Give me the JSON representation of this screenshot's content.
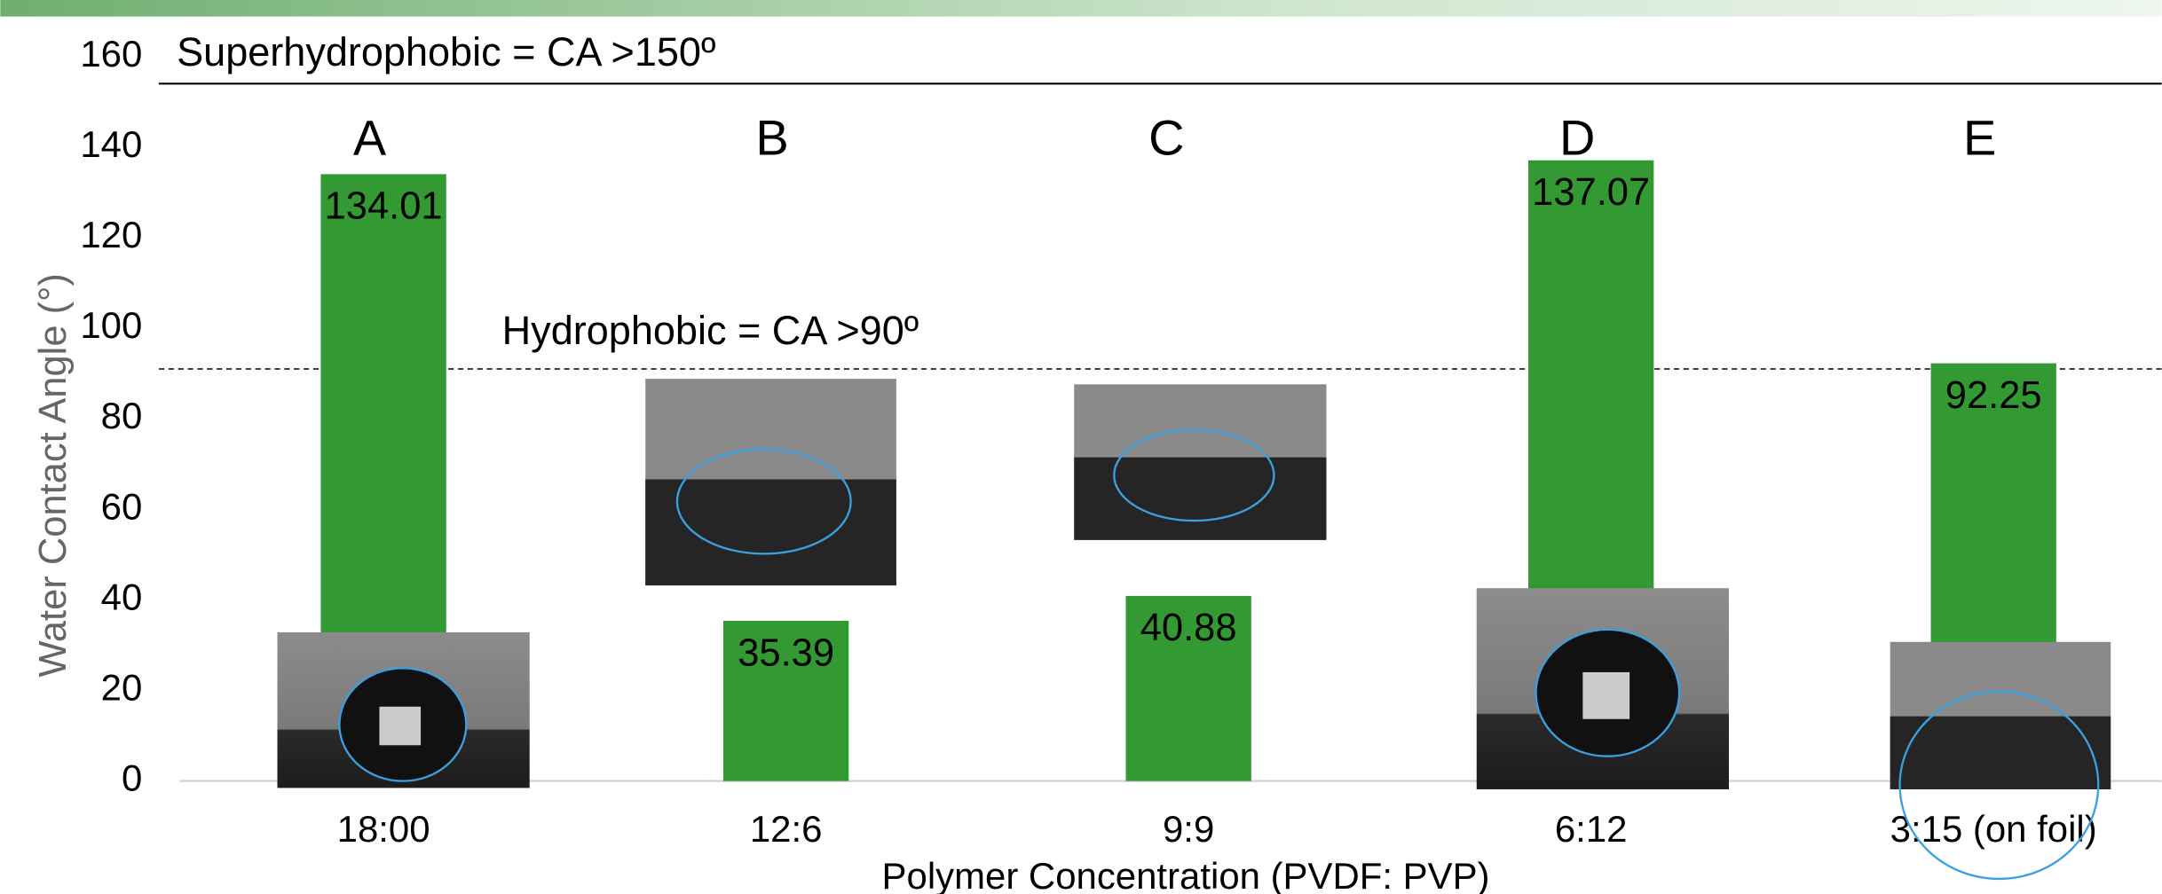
{
  "chart_data": {
    "type": "bar",
    "categories": [
      "18:00",
      "12:6",
      "9:9",
      "6:12",
      "3:15 (on foil)"
    ],
    "values": [
      134.01,
      35.39,
      40.88,
      137.07,
      92.25
    ],
    "bar_letters": [
      "A",
      "B",
      "C",
      "D",
      "E"
    ],
    "color": "#339933",
    "ylim": [
      0,
      160
    ],
    "yticks": [
      0,
      20,
      40,
      60,
      80,
      100,
      120,
      140,
      160
    ],
    "y_label": "Water Contact Angle (°)",
    "x_label": "Polymer Concentration (PVDF: PVP)",
    "reference_lines": [
      {
        "label": "Superhydrophobic = CA >150º",
        "value": 154,
        "style": "solid"
      },
      {
        "label": "Hydrophobic = CA >90º",
        "value": 91,
        "style": "dashed"
      }
    ]
  }
}
